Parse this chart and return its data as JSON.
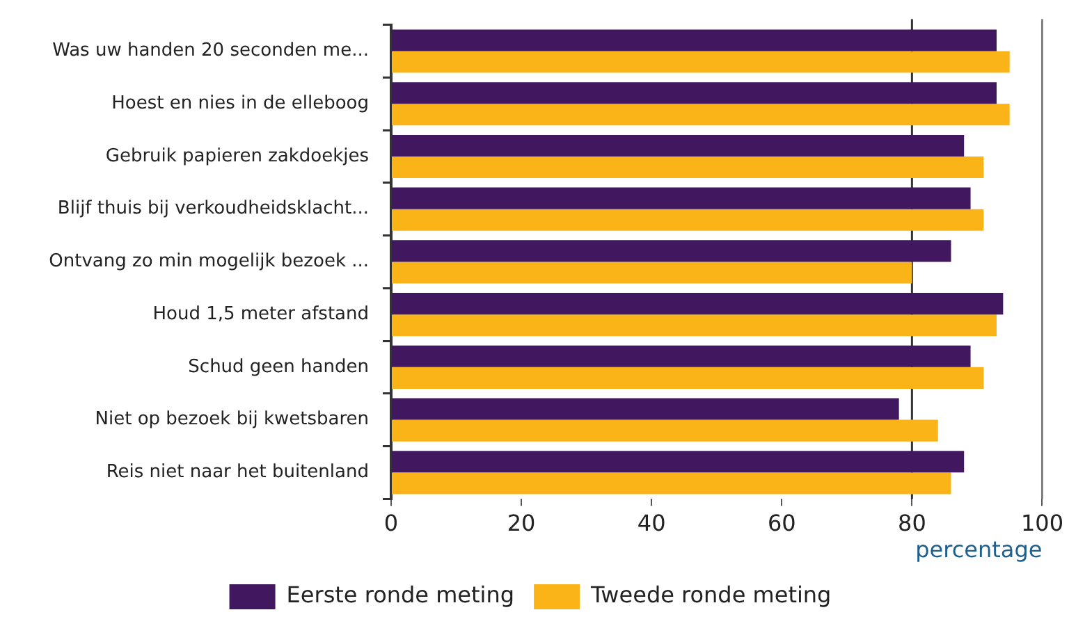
{
  "chart_data": {
    "type": "bar",
    "orientation": "horizontal",
    "categories": [
      "Was uw handen 20 seconden me...",
      "Hoest en nies in de elleboog",
      "Gebruik papieren zakdoekjes",
      "Blijf thuis bij verkoudheidsklacht...",
      "Ontvang zo min mogelijk bezoek ...",
      "Houd 1,5 meter afstand",
      "Schud geen handen",
      "Niet op bezoek bij kwetsbaren",
      "Reis niet naar het buitenland"
    ],
    "series": [
      {
        "name": "Eerste ronde meting",
        "color": "#41175f",
        "values": [
          93,
          93,
          88,
          89,
          86,
          94,
          89,
          78,
          88
        ]
      },
      {
        "name": "Tweede ronde meting",
        "color": "#fbb417",
        "values": [
          95,
          95,
          91,
          91,
          80,
          93,
          91,
          84,
          86
        ]
      }
    ],
    "xlabel": "percentage",
    "xlim": [
      0,
      100
    ],
    "xticks": [
      0,
      20,
      40,
      60,
      80,
      100
    ],
    "grid": false,
    "legend": "bottom",
    "ref_lines": [
      {
        "axis": "x",
        "value": 80,
        "color": "#333333"
      },
      {
        "axis": "x",
        "value": 100,
        "color": "#808080"
      }
    ]
  }
}
